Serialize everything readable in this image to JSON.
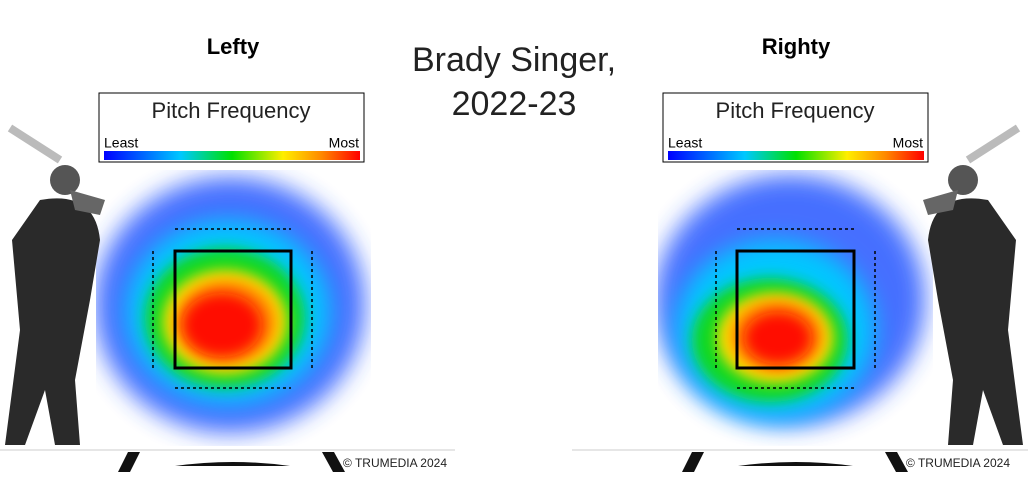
{
  "header": {
    "title_lines": [
      "Brady Singer,",
      "2022-23"
    ]
  },
  "panels": [
    {
      "label": "Lefty",
      "legend_title": "Pitch Frequency",
      "legend_min": "Least",
      "legend_max": "Most",
      "copyright": "© TRUMEDIA 2024"
    },
    {
      "label": "Righty",
      "legend_title": "Pitch Frequency",
      "legend_min": "Least",
      "legend_max": "Most",
      "copyright": "© TRUMEDIA 2024"
    }
  ]
}
